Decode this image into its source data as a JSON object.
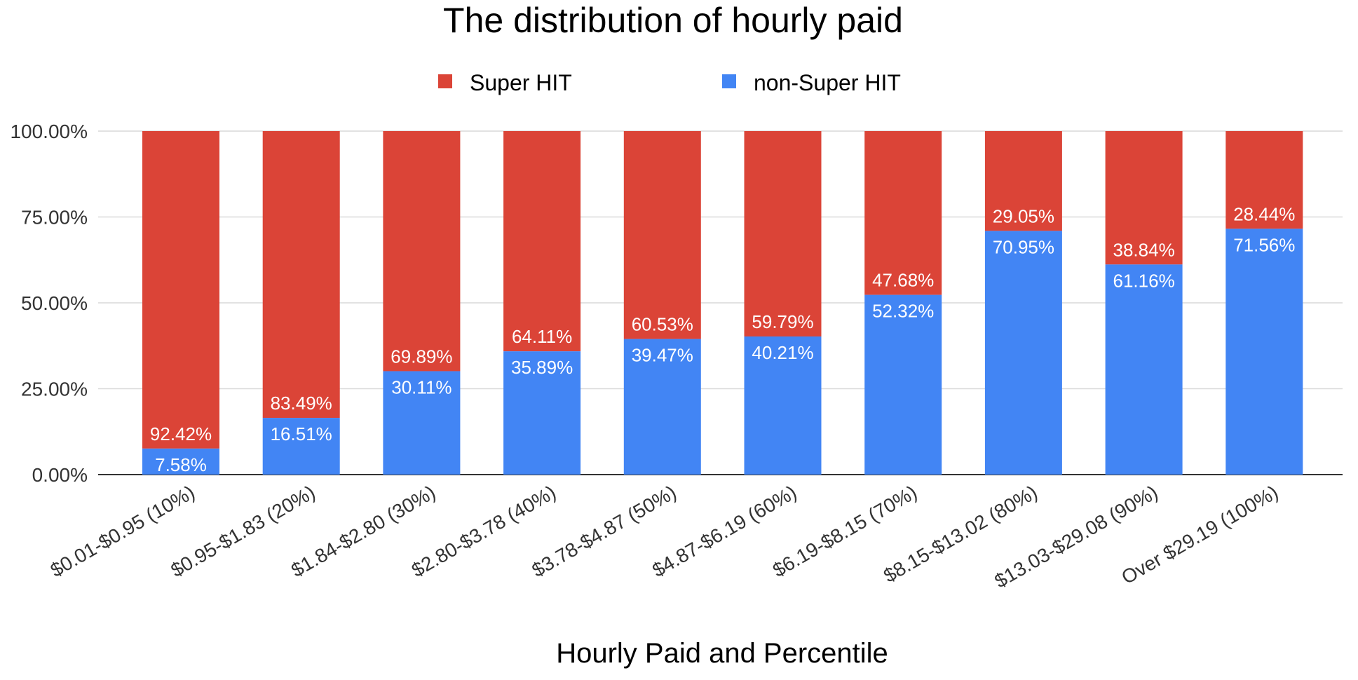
{
  "chart_data": {
    "type": "bar",
    "stacked": true,
    "percent_stacked": true,
    "title": "The distribution of hourly paid",
    "xlabel": "Hourly Paid and Percentile",
    "ylabel": "",
    "ylim": [
      0,
      100
    ],
    "yticks": [
      "0.00%",
      "25.00%",
      "50.00%",
      "75.00%",
      "100.00%"
    ],
    "ytick_values": [
      0,
      25,
      50,
      75,
      100
    ],
    "grid": true,
    "legend_position": "top",
    "categories": [
      "$0.01-$0.95 (10%)",
      "$0.95-$1.83 (20%)",
      "$1.84-$2.80 (30%)",
      "$2.80-$3.78 (40%)",
      "$3.78-$4.87 (50%)",
      "$4.87-$6.19 (60%)",
      "$6.19-$8.15 (70%)",
      "$8.15-$13.02 (80%)",
      "$13.03-$29.08 (90%)",
      "Over $29.19 (100%)"
    ],
    "series": [
      {
        "name": "non-Super HIT",
        "color": "#4285f4",
        "values": [
          7.58,
          16.51,
          30.11,
          35.89,
          39.47,
          40.21,
          52.32,
          70.95,
          61.16,
          71.56
        ],
        "labels": [
          "7.58%",
          "16.51%",
          "30.11%",
          "35.89%",
          "39.47%",
          "40.21%",
          "52.32%",
          "70.95%",
          "61.16%",
          "71.56%"
        ]
      },
      {
        "name": "Super HIT",
        "color": "#db4437",
        "values": [
          92.42,
          83.49,
          69.89,
          64.11,
          60.53,
          59.79,
          47.68,
          29.05,
          38.84,
          28.44
        ],
        "labels": [
          "92.42%",
          "83.49%",
          "69.89%",
          "64.11%",
          "60.53%",
          "59.79%",
          "47.68%",
          "29.05%",
          "38.84%",
          "28.44%"
        ]
      }
    ],
    "legend_order": [
      "Super HIT",
      "non-Super HIT"
    ]
  }
}
